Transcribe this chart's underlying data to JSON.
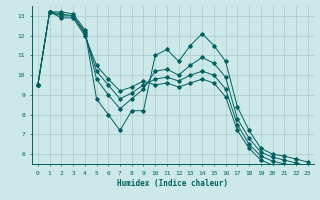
{
  "xlabel": "Humidex (Indice chaleur)",
  "background_color": "#cce8e8",
  "grid_color": "#aacccc",
  "line_color": "#006060",
  "xlim": [
    -0.5,
    23.5
  ],
  "ylim": [
    5.5,
    13.5
  ],
  "yticks": [
    6,
    7,
    8,
    9,
    10,
    11,
    12,
    13
  ],
  "xticks": [
    0,
    1,
    2,
    3,
    4,
    5,
    6,
    7,
    8,
    9,
    10,
    11,
    12,
    13,
    14,
    15,
    16,
    17,
    18,
    19,
    20,
    21,
    22,
    23
  ],
  "series": [
    [
      9.5,
      13.2,
      13.2,
      13.1,
      12.3,
      8.8,
      8.0,
      7.2,
      8.2,
      8.2,
      11.0,
      11.3,
      10.7,
      11.5,
      12.1,
      11.5,
      10.7,
      8.4,
      7.2,
      6.3,
      6.0,
      5.9,
      5.75,
      5.6
    ],
    [
      9.5,
      13.2,
      13.1,
      13.0,
      12.2,
      9.8,
      9.0,
      8.3,
      8.8,
      9.3,
      10.2,
      10.3,
      10.0,
      10.5,
      10.9,
      10.6,
      9.9,
      7.8,
      6.8,
      6.1,
      5.85,
      5.7,
      5.55,
      5.4
    ],
    [
      9.5,
      13.2,
      13.0,
      13.0,
      12.1,
      10.2,
      9.5,
      8.8,
      9.1,
      9.5,
      9.8,
      9.9,
      9.7,
      10.0,
      10.2,
      10.0,
      9.3,
      7.5,
      6.5,
      5.9,
      5.65,
      5.5,
      5.35,
      5.2
    ],
    [
      9.5,
      13.2,
      12.9,
      12.9,
      12.0,
      10.5,
      9.8,
      9.2,
      9.4,
      9.7,
      9.5,
      9.6,
      9.4,
      9.6,
      9.8,
      9.6,
      8.9,
      7.2,
      6.3,
      5.7,
      5.45,
      5.3,
      5.15,
      5.0
    ]
  ]
}
